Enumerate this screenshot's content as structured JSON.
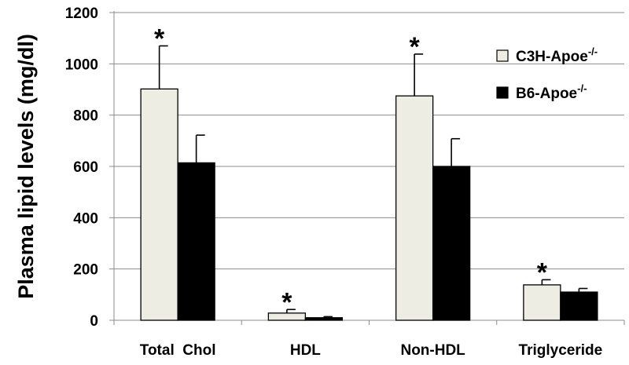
{
  "chart_data": {
    "type": "bar",
    "title": "",
    "xlabel": "",
    "ylabel": "Plasma lipid levels (mg/dl)",
    "ylim": [
      0,
      1200
    ],
    "yticks": [
      0,
      200,
      400,
      600,
      800,
      1000,
      1200
    ],
    "grid": true,
    "legend_position": "right",
    "categories": [
      "Total  Chol",
      "HDL",
      "Non-HDL",
      "Triglyceride"
    ],
    "series": [
      {
        "name": "C3H-Apoe",
        "name_superscript": "-/-",
        "color": "#eeede4",
        "values": [
          902,
          28,
          875,
          138
        ],
        "errors": [
          168,
          14,
          163,
          20
        ]
      },
      {
        "name": "B6-Apoe",
        "name_superscript": "-/-",
        "color": "#000000",
        "values": [
          614,
          10,
          600,
          110
        ],
        "errors": [
          108,
          4,
          108,
          14
        ]
      }
    ],
    "significance_marker": "*",
    "significant_categories": [
      0,
      1,
      2,
      3
    ]
  }
}
